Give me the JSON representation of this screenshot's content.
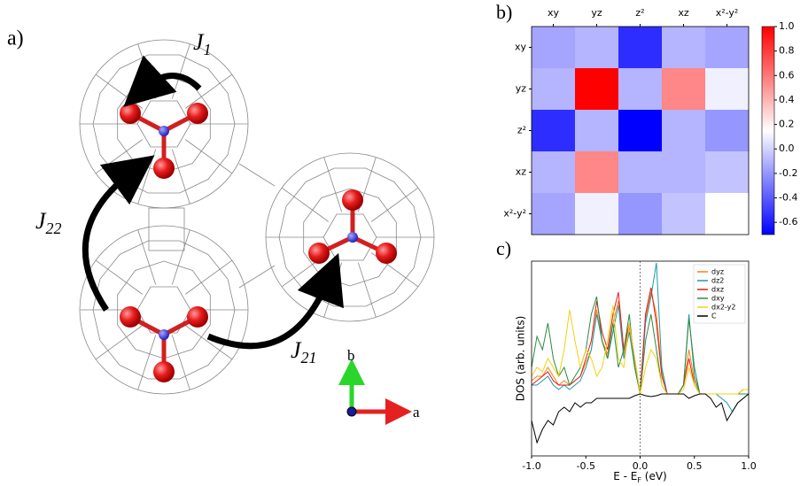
{
  "diagram": {
    "label": "a)",
    "couplings": [
      {
        "symbol": "J",
        "subscript": "1"
      },
      {
        "symbol": "J",
        "subscript": "22"
      },
      {
        "symbol": "J",
        "subscript": "21"
      }
    ],
    "axes": [
      "b",
      "a"
    ]
  },
  "chart_data": [
    {
      "type": "heatmap",
      "label": "b)",
      "categories": [
        "xy",
        "yz",
        "z²",
        "xz",
        "x²-y²"
      ],
      "values": [
        [
          -0.15,
          -0.1,
          -0.55,
          -0.1,
          -0.15
        ],
        [
          -0.1,
          1.0,
          -0.1,
          0.55,
          0.1
        ],
        [
          -0.55,
          -0.1,
          -0.7,
          -0.1,
          -0.2
        ],
        [
          -0.1,
          0.55,
          -0.1,
          -0.1,
          -0.05
        ],
        [
          -0.15,
          0.1,
          -0.2,
          -0.05,
          0.15
        ]
      ],
      "colormap": [
        "#0000ff",
        "#ffffff",
        "#ff0000"
      ],
      "clim": [
        -0.7,
        1.0
      ],
      "cticks": [
        {
          "value": 1,
          "label": "1.0"
        },
        0.8,
        0.6,
        0.4,
        0.2,
        {
          "value": 0,
          "label": "0.0"
        },
        -0.2,
        -0.4,
        -0.6
      ]
    },
    {
      "type": "line",
      "label": "c)",
      "xlabel": [
        "E - E",
        "F",
        " (eV)"
      ],
      "ylabel": "DOS (arb. units)",
      "x": [
        -1.0,
        -0.95,
        -0.9,
        -0.85,
        -0.8,
        -0.75,
        -0.7,
        -0.65,
        -0.6,
        -0.55,
        -0.5,
        -0.45,
        -0.4,
        -0.35,
        -0.3,
        -0.25,
        -0.2,
        -0.15,
        -0.1,
        -0.05,
        0,
        0.05,
        0.1,
        0.15,
        0.2,
        0.25,
        0.3,
        0.35,
        0.4,
        0.45,
        0.5,
        0.55,
        0.6,
        0.65,
        0.7,
        0.75,
        0.8,
        0.85,
        0.9,
        0.95,
        1.0
      ],
      "series": [
        {
          "name": "dyz",
          "color": "#ff7f0e",
          "values": [
            0.15,
            0.2,
            0.2,
            0.3,
            0.2,
            0.1,
            0.15,
            0.1,
            0.15,
            0.2,
            0.35,
            0.5,
            0.95,
            0.6,
            0.45,
            0.8,
            1.05,
            0.45,
            0.75,
            0.35,
            0,
            0.85,
            1.15,
            0.9,
            0.25,
            0,
            0,
            0,
            0.1,
            0.5,
            0.15,
            0,
            0,
            0,
            0,
            0,
            0,
            0,
            0,
            0,
            0
          ]
        },
        {
          "name": "dz2",
          "color": "#1f9aa8",
          "values": [
            0.1,
            0.1,
            0.15,
            0.2,
            0.1,
            0.05,
            0.1,
            0.05,
            0.1,
            0.15,
            0.3,
            0.5,
            0.9,
            0.6,
            0.4,
            0.7,
            1.0,
            0.4,
            0.7,
            0.3,
            0,
            0.8,
            1.1,
            1.48,
            0.3,
            0,
            0,
            0,
            0.1,
            0.9,
            0.2,
            0,
            0,
            0,
            0,
            -0.05,
            -0.1,
            -0.2,
            -0.1,
            -0.05,
            0
          ]
        },
        {
          "name": "dxz",
          "color": "#e41a1c",
          "values": [
            0.1,
            0.15,
            0.2,
            0.25,
            0.15,
            0.1,
            0.1,
            0.1,
            0.15,
            0.2,
            0.4,
            0.6,
            1.05,
            0.7,
            0.5,
            0.9,
            1.15,
            0.5,
            0.8,
            0.4,
            0,
            0.9,
            1.2,
            0.8,
            0.2,
            0,
            0,
            0,
            0.1,
            0.4,
            0.1,
            0,
            0,
            0,
            0,
            0,
            0,
            0,
            0,
            0.05,
            0.05
          ]
        },
        {
          "name": "dxy",
          "color": "#2e8b3e",
          "values": [
            0.3,
            0.65,
            0.5,
            0.8,
            0.4,
            0.2,
            0.3,
            0.1,
            0.2,
            0.3,
            0.5,
            0.9,
            1.1,
            0.6,
            0.4,
            0.8,
            0.3,
            0.5,
            0.9,
            0.3,
            0,
            0.6,
            0.9,
            0.5,
            0.1,
            0,
            0,
            0,
            0.1,
            0.85,
            0.3,
            0,
            0,
            0,
            0,
            0,
            0,
            0,
            0,
            0,
            0
          ]
        },
        {
          "name": "dx2-y2",
          "color": "#f2d20f",
          "values": [
            0.2,
            0.3,
            0.25,
            0.4,
            0.3,
            0.2,
            0.5,
            0.95,
            0.6,
            0.3,
            0.5,
            0.4,
            0.2,
            0.3,
            0.6,
            1.0,
            0.4,
            0.3,
            0.8,
            0.4,
            0,
            0.3,
            0.5,
            0.4,
            0.1,
            0,
            0,
            0,
            0.05,
            0.3,
            0.1,
            0,
            0,
            0,
            0,
            0,
            0,
            0,
            0,
            0.05,
            0.05
          ]
        },
        {
          "name": "C",
          "color": "#000000",
          "values": [
            -0.3,
            -0.55,
            -0.4,
            -0.3,
            -0.35,
            -0.2,
            -0.15,
            -0.2,
            -0.1,
            -0.15,
            -0.1,
            -0.1,
            -0.05,
            -0.05,
            -0.05,
            -0.05,
            -0.05,
            -0.05,
            -0.05,
            -0.02,
            0,
            -0.02,
            -0.03,
            -0.02,
            0,
            0,
            0,
            0,
            0,
            -0.05,
            -0.02,
            0,
            0,
            -0.05,
            -0.15,
            -0.1,
            -0.3,
            -0.2,
            -0.1,
            -0.05,
            0
          ]
        }
      ],
      "xlim": [
        -1,
        1
      ],
      "ylim": [
        -0.7,
        1.5
      ],
      "xticks": [
        {
          "value": -1,
          "label": "-1.0"
        },
        -0.5,
        {
          "value": 0,
          "label": "0.0"
        },
        0.5,
        {
          "value": 1,
          "label": "1.0"
        }
      ],
      "vline": 0,
      "legend": "upper right"
    }
  ]
}
